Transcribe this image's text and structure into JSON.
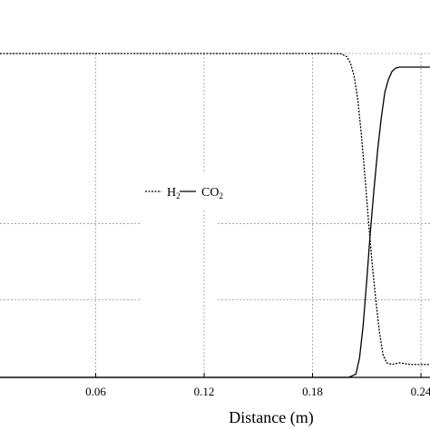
{
  "chart_data": {
    "type": "line",
    "xlabel": "Distance (m)",
    "ylabel": "",
    "title": "",
    "xlim": [
      0.0,
      0.245
    ],
    "ylim": [
      0.0,
      1.0
    ],
    "xticks": [
      0.06,
      0.12,
      0.18,
      0.24
    ],
    "xtick_labels": [
      "0.06",
      "0.12",
      "0.18",
      "0.24"
    ],
    "grid": true,
    "grid_y": [
      0.24,
      0.475,
      1.0
    ],
    "legend": {
      "placement": "center",
      "entries": [
        {
          "symbol": "H",
          "sub": "2",
          "style": "dashed"
        },
        {
          "symbol": "CO",
          "sub": "2",
          "style": "solid"
        }
      ]
    },
    "series": [
      {
        "style": "dashed",
        "color": "#000000",
        "x": [
          0.0,
          0.05,
          0.1,
          0.15,
          0.19,
          0.196,
          0.199,
          0.201,
          0.203,
          0.205,
          0.207,
          0.209,
          0.211,
          0.213,
          0.215,
          0.217,
          0.219,
          0.221,
          0.224,
          0.228,
          0.234,
          0.245
        ],
        "y": [
          1.0,
          1.0,
          1.0,
          1.0,
          1.0,
          0.999,
          0.99,
          0.97,
          0.93,
          0.86,
          0.75,
          0.62,
          0.48,
          0.35,
          0.24,
          0.14,
          0.07,
          0.045,
          0.04,
          0.045,
          0.04,
          0.04
        ]
      },
      {
        "style": "solid",
        "color": "#000000",
        "x": [
          0.0,
          0.05,
          0.1,
          0.15,
          0.2,
          0.204,
          0.206,
          0.208,
          0.21,
          0.212,
          0.214,
          0.216,
          0.218,
          0.22,
          0.222,
          0.224,
          0.226,
          0.228,
          0.231,
          0.235,
          0.245
        ],
        "y": [
          0.0,
          0.0,
          0.0,
          0.0,
          0.0,
          0.01,
          0.06,
          0.16,
          0.3,
          0.45,
          0.58,
          0.7,
          0.8,
          0.88,
          0.92,
          0.945,
          0.955,
          0.958,
          0.958,
          0.958,
          0.958
        ]
      }
    ]
  }
}
